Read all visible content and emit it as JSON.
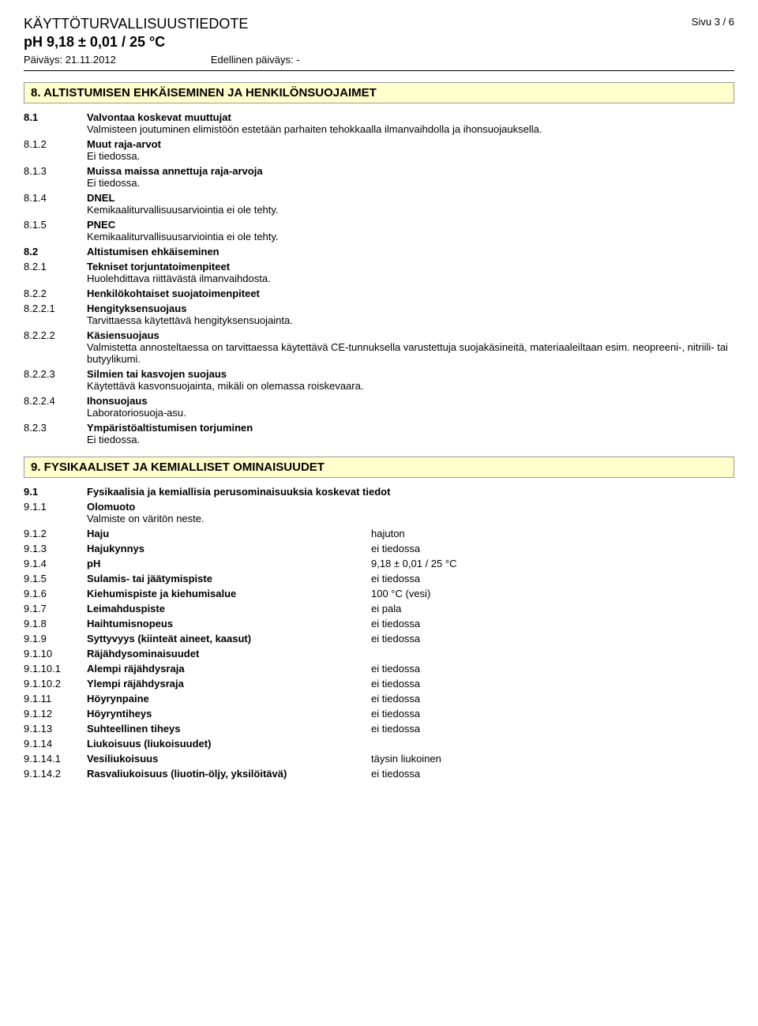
{
  "header": {
    "docTitle": "KÄYTTÖTURVALLISUUSTIEDOTE",
    "subtitle": "pH 9,18 ± 0,01 / 25 °C",
    "pageLabel": "Sivu  3 / 6",
    "dateLabel": "Päiväys: 21.11.2012",
    "prevDateLabel": "Edellinen päiväys: -"
  },
  "section8": {
    "title": "8. ALTISTUMISEN EHKÄISEMINEN JA HENKILÖNSUOJAIMET",
    "items": [
      {
        "num": "8.1",
        "label": "Valvontaa koskevat muuttujat",
        "text": "Valmisteen joutuminen elimistöön estetään parhaiten tehokkaalla ilmanvaihdolla ja ihonsuojauksella.",
        "numBold": true
      },
      {
        "num": "8.1.2",
        "label": "Muut raja-arvot",
        "text": "Ei tiedossa.",
        "numBold": false
      },
      {
        "num": "8.1.3",
        "label": "Muissa maissa annettuja raja-arvoja",
        "text": "Ei tiedossa.",
        "numBold": false
      },
      {
        "num": "8.1.4",
        "label": "DNEL",
        "text": "Kemikaaliturvallisuusarviointia ei ole tehty.",
        "numBold": false
      },
      {
        "num": "8.1.5",
        "label": "PNEC",
        "text": "Kemikaaliturvallisuusarviointia ei ole tehty.",
        "numBold": false
      },
      {
        "num": "8.2",
        "label": "Altistumisen ehkäiseminen",
        "text": "",
        "numBold": true
      },
      {
        "num": "8.2.1",
        "label": "Tekniset torjuntatoimenpiteet",
        "text": "Huolehdittava riittävästä ilmanvaihdosta.",
        "numBold": false
      },
      {
        "num": "8.2.2",
        "label": "Henkilökohtaiset suojatoimenpiteet",
        "text": "",
        "numBold": false
      },
      {
        "num": "8.2.2.1",
        "label": "Hengityksensuojaus",
        "text": "Tarvittaessa käytettävä hengityksensuojainta.",
        "numBold": false
      },
      {
        "num": "8.2.2.2",
        "label": "Käsiensuojaus",
        "text": "Valmistetta annosteltaessa on tarvittaessa käytettävä CE-tunnuksella varustettuja suojakäsineitä, materiaaleiltaan esim. neopreeni-, nitriili- tai butyylikumi.",
        "numBold": false
      },
      {
        "num": "8.2.2.3",
        "label": "Silmien tai kasvojen suojaus",
        "text": "Käytettävä kasvonsuojainta, mikäli on olemassa roiskevaara.",
        "numBold": false
      },
      {
        "num": "8.2.2.4",
        "label": "Ihonsuojaus",
        "text": "Laboratoriosuoja-asu.",
        "numBold": false
      },
      {
        "num": "8.2.3",
        "label": "Ympäristöaltistumisen torjuminen",
        "text": "Ei tiedossa.",
        "numBold": false
      }
    ]
  },
  "section9": {
    "title": "9. FYSIKAALISET JA KEMIALLISET OMINAISUUDET",
    "intro": [
      {
        "num": "9.1",
        "label": "Fysikaalisia ja kemiallisia perusominaisuuksia koskevat tiedot",
        "numBold": true
      },
      {
        "num": "9.1.1",
        "label": "Olomuoto",
        "text": "Valmiste on väritön neste.",
        "numBold": false
      }
    ],
    "props": [
      {
        "num": "9.1.2",
        "label": "Haju",
        "value": "hajuton"
      },
      {
        "num": "9.1.3",
        "label": "Hajukynnys",
        "value": "ei tiedossa"
      },
      {
        "num": "9.1.4",
        "label": "pH",
        "value": "9,18 ± 0,01 / 25 °C"
      },
      {
        "num": "9.1.5",
        "label": "Sulamis- tai jäätymispiste",
        "value": "ei tiedossa"
      },
      {
        "num": "9.1.6",
        "label": "Kiehumispiste ja kiehumisalue",
        "value": "100 °C (vesi)"
      },
      {
        "num": "9.1.7",
        "label": "Leimahduspiste",
        "value": "ei pala"
      },
      {
        "num": "9.1.8",
        "label": "Haihtumisnopeus",
        "value": "ei tiedossa"
      },
      {
        "num": "9.1.9",
        "label": "Syttyvyys (kiinteät aineet, kaasut)",
        "value": "ei tiedossa"
      }
    ],
    "explosion": {
      "headNum": "9.1.10",
      "headLabel": "Räjähdysominaisuudet",
      "rows": [
        {
          "num": "9.1.10.1",
          "label": "Alempi räjähdysraja",
          "value": "ei tiedossa"
        },
        {
          "num": "9.1.10.2",
          "label": "Ylempi räjähdysraja",
          "value": "ei tiedossa"
        }
      ]
    },
    "props2": [
      {
        "num": "9.1.11",
        "label": "Höyrynpaine",
        "value": "ei tiedossa"
      },
      {
        "num": "9.1.12",
        "label": "Höyryntiheys",
        "value": "ei tiedossa"
      },
      {
        "num": "9.1.13",
        "label": "Suhteellinen tiheys",
        "value": "ei tiedossa"
      }
    ],
    "solubility": {
      "headNum": "9.1.14",
      "headLabel": "Liukoisuus (liukoisuudet)",
      "rows": [
        {
          "num": "9.1.14.1",
          "label": "Vesiliukoisuus",
          "value": "täysin liukoinen"
        },
        {
          "num": "9.1.14.2",
          "label": "Rasvaliukoisuus (liuotin-öljy, yksilöitävä)",
          "value": "ei tiedossa"
        }
      ]
    }
  }
}
